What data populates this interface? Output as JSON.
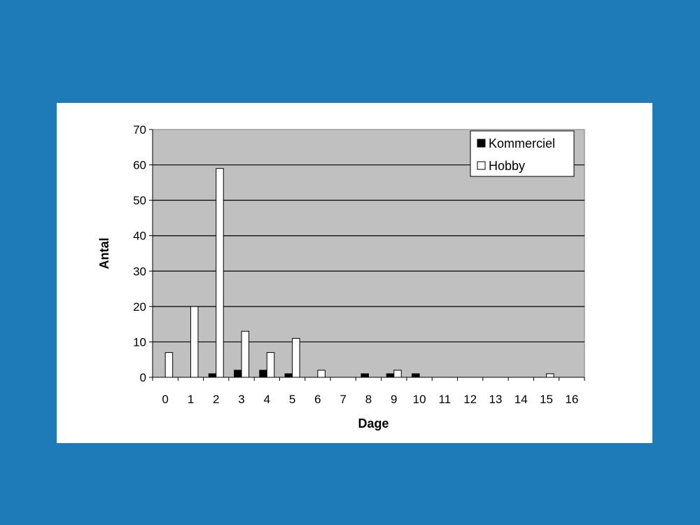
{
  "colors": {
    "background": "#1f7bb7",
    "panel": "#ffffff",
    "plot_area": "#c0c0c0",
    "kommerciel": "#000000",
    "hobby": "#ffffff"
  },
  "chart_data": {
    "type": "bar",
    "title": "",
    "xlabel": "Dage",
    "ylabel": "Antal",
    "ylim": [
      0,
      70
    ],
    "yticks": [
      0,
      10,
      20,
      30,
      40,
      50,
      60,
      70
    ],
    "grid": true,
    "legend_position": "top-right",
    "categories": [
      "0",
      "1",
      "2",
      "3",
      "4",
      "5",
      "6",
      "7",
      "8",
      "9",
      "10",
      "11",
      "12",
      "13",
      "14",
      "15",
      "16"
    ],
    "series": [
      {
        "name": "Kommerciel",
        "values": [
          0,
          0,
          1,
          2,
          2,
          1,
          0,
          0,
          1,
          1,
          1,
          0,
          0,
          0,
          0,
          0,
          0
        ]
      },
      {
        "name": "Hobby",
        "values": [
          7,
          20,
          59,
          13,
          7,
          11,
          2,
          0,
          0,
          2,
          0,
          0,
          0,
          0,
          0,
          1,
          0
        ]
      }
    ]
  }
}
